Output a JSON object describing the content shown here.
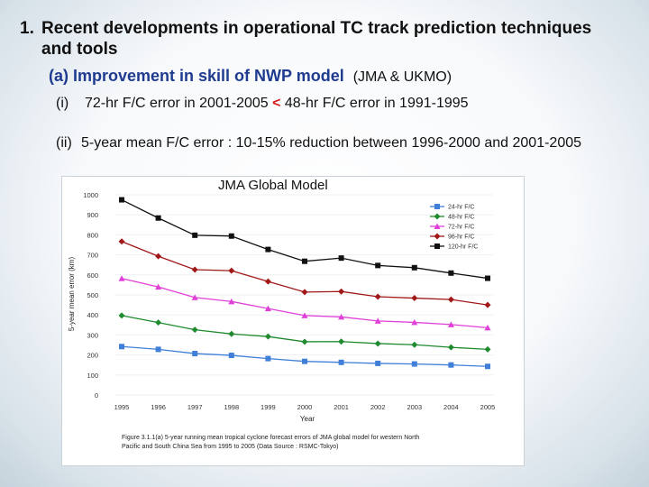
{
  "heading": {
    "number": "1.",
    "text": "Recent developments in operational TC track prediction techniques and tools"
  },
  "subheading_a": {
    "label": "(a) Improvement in skill of NWP model",
    "org": "(JMA & UKMO)"
  },
  "item_i": {
    "roman": "(i)",
    "left": "72-hr F/C error in 2001-2005",
    "symbol": "<",
    "right": "48-hr F/C error in 1991-1995"
  },
  "item_ii": {
    "roman": "(ii)",
    "text": "5-year mean F/C error : 10-15% reduction between 1996-2000 and 2001-2005"
  },
  "figure_title": "JMA Global Model",
  "chart_data": {
    "type": "line",
    "title": "JMA Global Model",
    "xlabel": "Year",
    "ylabel": "5-year mean error (km)",
    "categories": [
      "1995",
      "1996",
      "1997",
      "1998",
      "1999",
      "2000",
      "2001",
      "2002",
      "2003",
      "2004",
      "2005"
    ],
    "ylim": [
      0,
      1000
    ],
    "yticks": [
      0,
      100,
      200,
      300,
      400,
      500,
      600,
      700,
      800,
      900,
      1000
    ],
    "legend_position": "top-right",
    "series": [
      {
        "name": "24-hr F/C",
        "color": "#3f7fd8",
        "marker": "square",
        "values": [
          242,
          228,
          207,
          198,
          182,
          168,
          163,
          158,
          155,
          150,
          143
        ]
      },
      {
        "name": "48-hr F/C",
        "color": "#1f8a2e",
        "marker": "diamond",
        "values": [
          397,
          362,
          326,
          305,
          292,
          266,
          267,
          257,
          251,
          238,
          228
        ]
      },
      {
        "name": "72-hr F/C",
        "color": "#e040d8",
        "marker": "triangle",
        "values": [
          582,
          540,
          487,
          467,
          432,
          397,
          390,
          370,
          363,
          352,
          336
        ]
      },
      {
        "name": "96-hr F/C",
        "color": "#a01818",
        "marker": "diamond",
        "values": [
          767,
          693,
          626,
          621,
          567,
          514,
          517,
          491,
          484,
          477,
          450
        ]
      },
      {
        "name": "120-hr F/C",
        "color": "#111111",
        "marker": "square",
        "values": [
          975,
          884,
          798,
          794,
          727,
          668,
          684,
          647,
          636,
          609,
          583
        ]
      }
    ],
    "caption": "Figure 3.1.1(a) 5-year running mean tropical cyclone forecast errors of JMA global model for western North Pacific and South China Sea from 1995 to 2005 (Data Source : RSMC-Tokyo)"
  }
}
